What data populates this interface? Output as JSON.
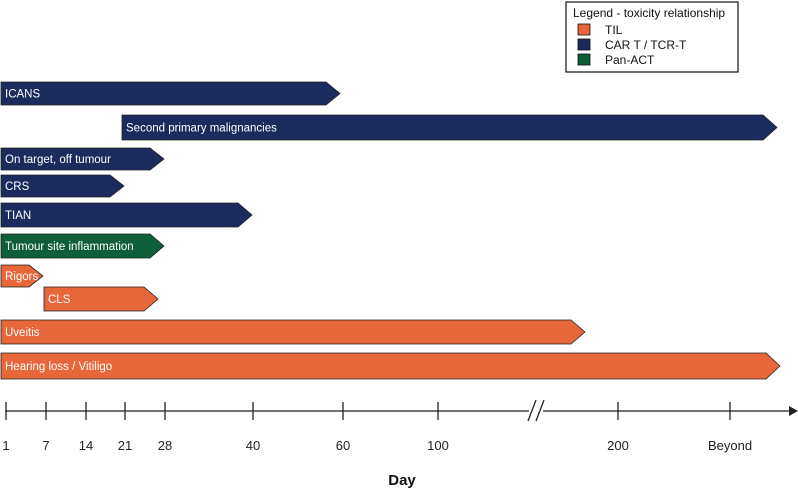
{
  "chart_data": {
    "type": "bar",
    "subtype": "horizontal-timeline",
    "xlabel": "Day",
    "x_ticks": [
      "1",
      "7",
      "14",
      "21",
      "28",
      "40",
      "60",
      "100",
      "200",
      "Beyond"
    ],
    "axis_break": "between 100 and 200",
    "legend": {
      "title": "Legend - toxicity relationship",
      "placement": "top-right",
      "entries": [
        {
          "name": "TIL",
          "color": "#e8673a"
        },
        {
          "name": "CAR T / TCR-T",
          "color": "#1c2b5e"
        },
        {
          "name": "Pan-ACT",
          "color": "#0f5e3a"
        }
      ]
    },
    "series": [
      {
        "label": "ICANS",
        "start": "1",
        "end": "60",
        "relationship": "CAR T / TCR-T"
      },
      {
        "label": "Second primary malignancies",
        "start": "21",
        "end": "Beyond",
        "relationship": "CAR T / TCR-T"
      },
      {
        "label": "On target, off tumour",
        "start": "1",
        "end": "28",
        "relationship": "CAR T / TCR-T"
      },
      {
        "label": "CRS",
        "start": "1",
        "end": "21",
        "relationship": "CAR T / TCR-T"
      },
      {
        "label": "TIAN",
        "start": "1",
        "end": "40",
        "relationship": "CAR T / TCR-T"
      },
      {
        "label": "Tumour site inflammation",
        "start": "1",
        "end": "28",
        "relationship": "Pan-ACT"
      },
      {
        "label": "Rigors",
        "start": "1",
        "end": "7",
        "relationship": "TIL"
      },
      {
        "label": "CLS",
        "start": "7",
        "end": "28",
        "relationship": "TIL"
      },
      {
        "label": "Uveitis",
        "start": "1",
        "end": "between 100 and 200",
        "relationship": "TIL"
      },
      {
        "label": "Hearing loss / Vitiligo",
        "start": "1",
        "end": "Beyond",
        "relationship": "TIL"
      }
    ]
  }
}
